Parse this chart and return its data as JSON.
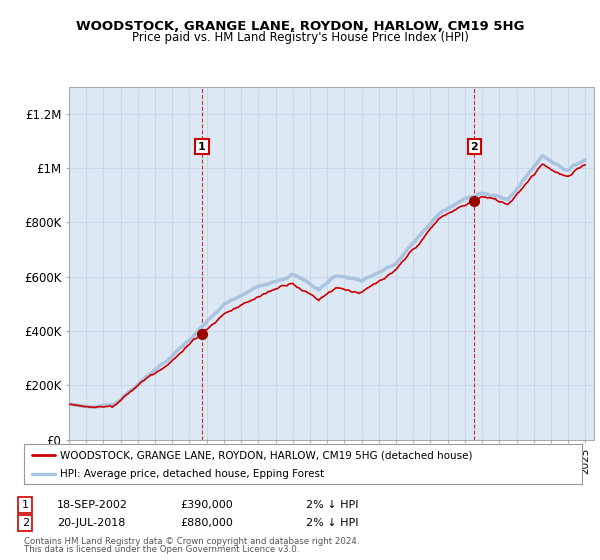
{
  "title": "WOODSTOCK, GRANGE LANE, ROYDON, HARLOW, CM19 5HG",
  "subtitle": "Price paid vs. HM Land Registry's House Price Index (HPI)",
  "ylabel_ticks": [
    "£0",
    "£200K",
    "£400K",
    "£600K",
    "£800K",
    "£1M",
    "£1.2M"
  ],
  "ytick_values": [
    0,
    200000,
    400000,
    600000,
    800000,
    1000000,
    1200000
  ],
  "ylim": [
    0,
    1300000
  ],
  "xlim_start": 1995.0,
  "xlim_end": 2025.5,
  "sale1_x": 2002.72,
  "sale1_y": 390000,
  "sale1_label": "1",
  "sale2_x": 2018.55,
  "sale2_y": 880000,
  "sale2_label": "2",
  "hpi_color": "#aac4e0",
  "price_color": "#cc0000",
  "sale_marker_color": "#990000",
  "annotation_box_color": "#cc0000",
  "grid_color": "#c8d8e8",
  "background_color": "#dce8f4",
  "legend_label1": "WOODSTOCK, GRANGE LANE, ROYDON, HARLOW, CM19 5HG (detached house)",
  "legend_label2": "HPI: Average price, detached house, Epping Forest",
  "footer1": "Contains HM Land Registry data © Crown copyright and database right 2024.",
  "footer2": "This data is licensed under the Open Government Licence v3.0.",
  "table_row1_num": "1",
  "table_row1_date": "18-SEP-2002",
  "table_row1_price": "£390,000",
  "table_row1_hpi": "2% ↓ HPI",
  "table_row2_num": "2",
  "table_row2_date": "20-JUL-2018",
  "table_row2_price": "£880,000",
  "table_row2_hpi": "2% ↓ HPI"
}
